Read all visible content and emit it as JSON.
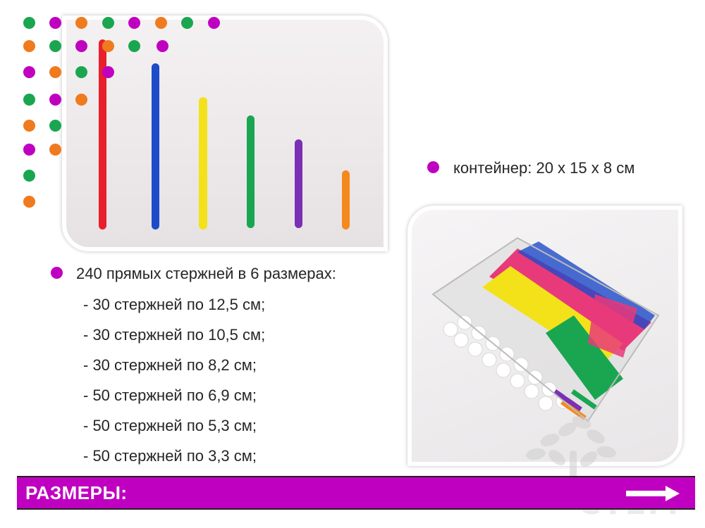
{
  "colors": {
    "accent": "#c000c0",
    "green": "#1aa651",
    "magenta": "#c000c0",
    "orange": "#f07a1e",
    "red": "#e8202c",
    "blue": "#1e4bc9",
    "yellow": "#f3e21a",
    "purple": "#7b2fb5",
    "rod_orange": "#f58a1c"
  },
  "bullets": {
    "container": "контейнер: 20 х 15 х 8 см",
    "rods_heading": "240 прямых стержней в 6 размерах:"
  },
  "rod_sizes": [
    "- 30 стержней по 12,5 см;",
    "- 30 стержней по 10,5 см;",
    "- 30 стержней по 8,2 см;",
    "- 50 стержней по 6,9 см;",
    "- 50 стержней по 5,3 см;",
    "- 50 стержней по 3,3 см;"
  ],
  "footer": {
    "title": "РАЗМЕРЫ:"
  },
  "logo": {
    "text": "СТЕМ"
  }
}
